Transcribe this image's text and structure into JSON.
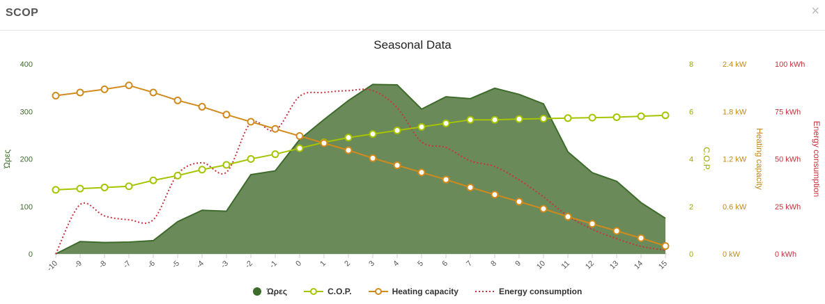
{
  "header": {
    "title": "SCOP",
    "close_label": "×"
  },
  "chart_data": {
    "type": "line",
    "title": "Seasonal Data",
    "x": [
      -10,
      -9,
      -8,
      -7,
      -6,
      -5,
      -4,
      -3,
      -2,
      -1,
      0,
      1,
      2,
      3,
      4,
      5,
      6,
      7,
      8,
      9,
      10,
      11,
      12,
      13,
      14,
      15
    ],
    "axes": {
      "hours": {
        "label": "Ώρες",
        "range": [
          0,
          400
        ],
        "ticks": [
          "0",
          "100",
          "200",
          "300",
          "400"
        ]
      },
      "cop": {
        "label": "C.O.P.",
        "range": [
          0,
          8
        ],
        "ticks": [
          "0",
          "2",
          "4",
          "6",
          "8"
        ]
      },
      "capacity": {
        "label": "Heating capacity",
        "range": [
          0,
          2.4
        ],
        "ticks": [
          "0 kW",
          "0.6 kW",
          "1.2 kW",
          "1.8 kW",
          "2.4 kW"
        ]
      },
      "energy": {
        "label": "Energy consumption",
        "range": [
          0,
          100
        ],
        "ticks": [
          "0 kWh",
          "25 kWh",
          "50 kWh",
          "75 kWh",
          "100 kWh"
        ]
      }
    },
    "series": [
      {
        "name": "Ώρες",
        "kind": "area",
        "axis": "hours",
        "color": "#6b8a5a",
        "legend_color": "#3d6b2a",
        "values": [
          0,
          26,
          24,
          25,
          28,
          68,
          92,
          90,
          167,
          175,
          241,
          283,
          323,
          357,
          356,
          305,
          331,
          327,
          349,
          336,
          316,
          215,
          171,
          153,
          108,
          75
        ]
      },
      {
        "name": "C.O.P.",
        "kind": "line",
        "axis": "cop",
        "color": "#a6c400",
        "values": [
          2.7,
          2.75,
          2.8,
          2.85,
          3.1,
          3.3,
          3.55,
          3.75,
          4.0,
          4.2,
          4.45,
          4.7,
          4.9,
          5.05,
          5.2,
          5.35,
          5.5,
          5.65,
          5.65,
          5.68,
          5.7,
          5.72,
          5.74,
          5.76,
          5.8,
          5.84
        ]
      },
      {
        "name": "Heating capacity",
        "kind": "line",
        "axis": "capacity",
        "color": "#d18a1c",
        "values": [
          2.0,
          2.04,
          2.08,
          2.13,
          2.04,
          1.94,
          1.86,
          1.76,
          1.67,
          1.58,
          1.49,
          1.4,
          1.31,
          1.21,
          1.12,
          1.03,
          0.94,
          0.84,
          0.75,
          0.66,
          0.57,
          0.47,
          0.38,
          0.29,
          0.2,
          0.1
        ]
      },
      {
        "name": "Energy consumption",
        "kind": "dotted",
        "axis": "energy",
        "color": "#c9323d",
        "values": [
          0,
          26,
          20,
          18,
          18,
          42,
          48,
          43,
          69,
          65,
          83,
          85,
          86,
          86,
          77,
          59,
          56,
          49,
          46,
          39,
          30,
          20,
          13,
          8,
          4,
          2
        ]
      }
    ],
    "legend_position": "bottom",
    "grid": false
  }
}
